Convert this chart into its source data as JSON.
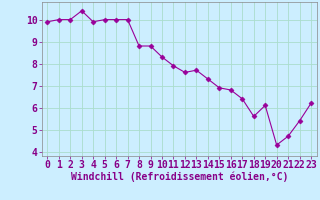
{
  "x": [
    0,
    1,
    2,
    3,
    4,
    5,
    6,
    7,
    8,
    9,
    10,
    11,
    12,
    13,
    14,
    15,
    16,
    17,
    18,
    19,
    20,
    21,
    22,
    23
  ],
  "y": [
    9.9,
    10.0,
    10.0,
    10.4,
    9.9,
    10.0,
    10.0,
    10.0,
    8.8,
    8.8,
    8.3,
    7.9,
    7.6,
    7.7,
    7.3,
    6.9,
    6.8,
    6.4,
    5.6,
    6.1,
    4.3,
    4.7,
    5.4,
    6.2
  ],
  "line_color": "#990099",
  "marker": "D",
  "marker_size": 2.5,
  "bg_color": "#cceeff",
  "grid_color": "#aaddcc",
  "xlabel": "Windchill (Refroidissement éolien,°C)",
  "xlabel_color": "#880088",
  "xlabel_fontsize": 7,
  "tick_color": "#880088",
  "tick_fontsize": 7,
  "xlim": [
    -0.5,
    23.5
  ],
  "ylim": [
    3.8,
    10.8
  ],
  "yticks": [
    4,
    5,
    6,
    7,
    8,
    9,
    10
  ],
  "xticks": [
    0,
    1,
    2,
    3,
    4,
    5,
    6,
    7,
    8,
    9,
    10,
    11,
    12,
    13,
    14,
    15,
    16,
    17,
    18,
    19,
    20,
    21,
    22,
    23
  ]
}
